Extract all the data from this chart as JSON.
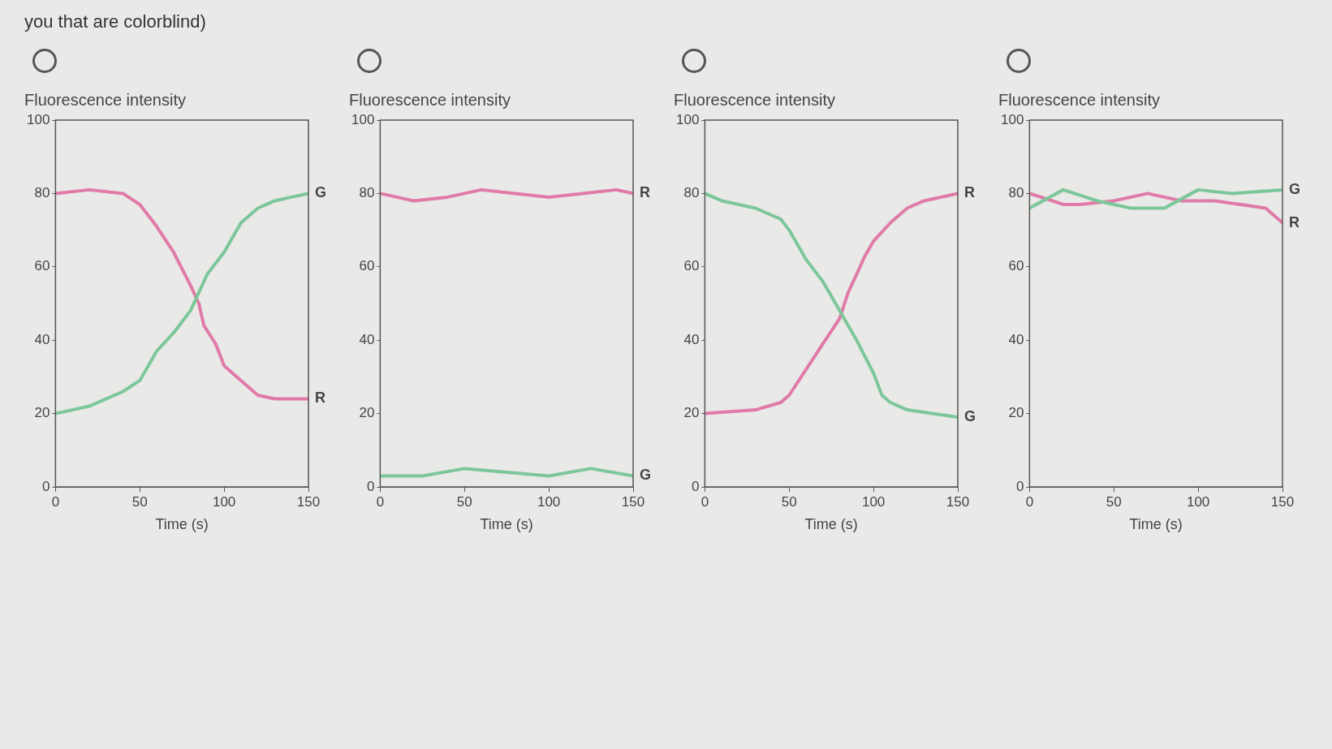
{
  "chart_data": [
    {
      "type": "line",
      "ylabel": "Fluorescence intensity",
      "xlabel": "Time (s)",
      "xlim": [
        0,
        150
      ],
      "xticks": [
        0,
        50,
        100,
        150
      ],
      "ylim": [
        0,
        100
      ],
      "yticks": [
        0,
        20,
        40,
        60,
        80,
        100
      ],
      "grid": false,
      "legend": false,
      "marker": "none",
      "annotations": [
        "you that are colorblind)"
      ],
      "series": [
        {
          "name": "G",
          "color": "#7cc79a",
          "x": [
            0,
            20,
            40,
            50,
            60,
            70,
            80,
            90,
            100,
            110,
            120,
            130,
            140,
            150
          ],
          "values": [
            20,
            22,
            26,
            29,
            37,
            42,
            48,
            58,
            64,
            72,
            76,
            78,
            79,
            80
          ]
        },
        {
          "name": "R",
          "color": "#e07aa8",
          "x": [
            0,
            20,
            40,
            50,
            60,
            70,
            80,
            85,
            88,
            95,
            100,
            110,
            120,
            130,
            150
          ],
          "values": [
            80,
            81,
            80,
            77,
            71,
            64,
            55,
            50,
            44,
            39,
            33,
            29,
            25,
            24,
            24
          ]
        }
      ]
    },
    {
      "type": "line",
      "ylabel": "Fluorescence intensity",
      "xlabel": "Time (s)",
      "xlim": [
        0,
        150
      ],
      "xticks": [
        0,
        50,
        100,
        150
      ],
      "ylim": [
        0,
        100
      ],
      "yticks": [
        0,
        20,
        40,
        60,
        80,
        100
      ],
      "grid": false,
      "legend": false,
      "marker": "none",
      "series": [
        {
          "name": "G",
          "color": "#7cc79a",
          "x": [
            0,
            25,
            50,
            75,
            100,
            125,
            150
          ],
          "values": [
            3,
            3,
            5,
            4,
            3,
            5,
            3
          ]
        },
        {
          "name": "R",
          "color": "#e07aa8",
          "x": [
            0,
            20,
            40,
            60,
            80,
            100,
            120,
            140,
            150
          ],
          "values": [
            80,
            78,
            79,
            81,
            80,
            79,
            80,
            81,
            80
          ]
        }
      ]
    },
    {
      "type": "line",
      "ylabel": "Fluorescence intensity",
      "xlabel": "Time (s)",
      "xlim": [
        0,
        150
      ],
      "xticks": [
        0,
        50,
        100,
        150
      ],
      "ylim": [
        0,
        100
      ],
      "yticks": [
        0,
        20,
        40,
        60,
        80,
        100
      ],
      "grid": false,
      "legend": false,
      "marker": "none",
      "series": [
        {
          "name": "G",
          "color": "#7cc79a",
          "x": [
            0,
            10,
            30,
            45,
            50,
            60,
            70,
            80,
            90,
            100,
            105,
            110,
            120,
            150
          ],
          "values": [
            80,
            78,
            76,
            73,
            70,
            62,
            56,
            48,
            40,
            31,
            25,
            23,
            21,
            19
          ]
        },
        {
          "name": "R",
          "color": "#e07aa8",
          "x": [
            0,
            30,
            45,
            50,
            60,
            70,
            80,
            85,
            90,
            95,
            100,
            110,
            120,
            130,
            150
          ],
          "values": [
            20,
            21,
            23,
            25,
            32,
            39,
            46,
            53,
            58,
            63,
            67,
            72,
            76,
            78,
            80
          ]
        }
      ]
    },
    {
      "type": "line",
      "ylabel": "Fluorescence intensity",
      "xlabel": "Time (s)",
      "xlim": [
        0,
        150
      ],
      "xticks": [
        0,
        50,
        100,
        150
      ],
      "ylim": [
        0,
        100
      ],
      "yticks": [
        0,
        20,
        40,
        60,
        80,
        100
      ],
      "grid": false,
      "legend": false,
      "marker": "none",
      "series": [
        {
          "name": "G",
          "color": "#7cc79a",
          "x": [
            0,
            20,
            40,
            60,
            80,
            100,
            120,
            150
          ],
          "values": [
            76,
            81,
            78,
            76,
            76,
            81,
            80,
            81
          ]
        },
        {
          "name": "R",
          "color": "#e07aa8",
          "x": [
            0,
            20,
            30,
            50,
            70,
            90,
            110,
            140,
            150
          ],
          "values": [
            80,
            77,
            77,
            78,
            80,
            78,
            78,
            76,
            72
          ]
        }
      ]
    }
  ]
}
